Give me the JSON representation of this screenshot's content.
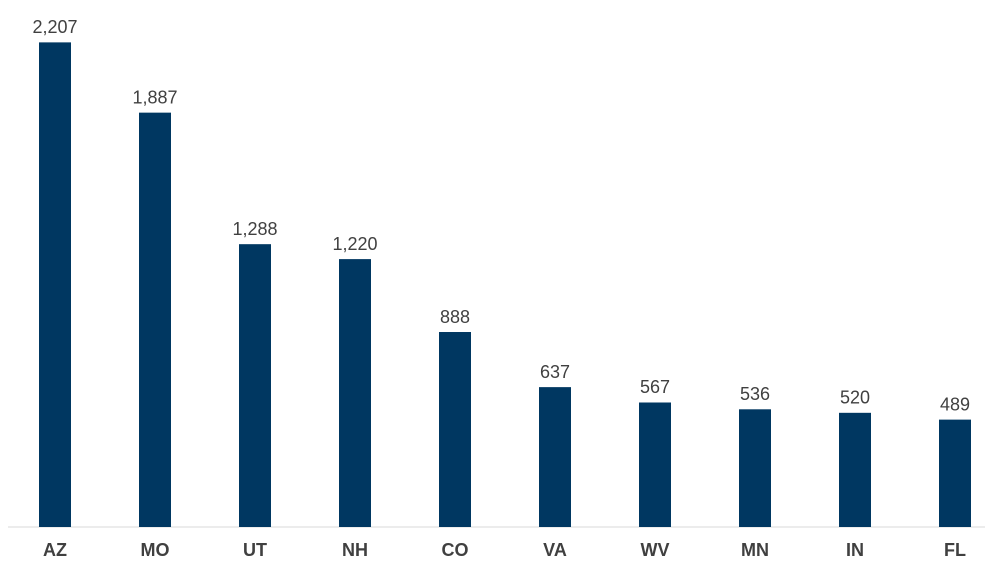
{
  "chart_data": {
    "type": "bar",
    "categories": [
      "AZ",
      "MO",
      "UT",
      "NH",
      "CO",
      "VA",
      "WV",
      "MN",
      "IN",
      "FL"
    ],
    "values": [
      2207,
      1887,
      1288,
      1220,
      888,
      637,
      567,
      536,
      520,
      489
    ],
    "value_labels": [
      "2,207",
      "1,887",
      "1,288",
      "1,220",
      "888",
      "637",
      "567",
      "536",
      "520",
      "489"
    ],
    "color": "#003761",
    "ylim": [
      0,
      2400
    ]
  }
}
